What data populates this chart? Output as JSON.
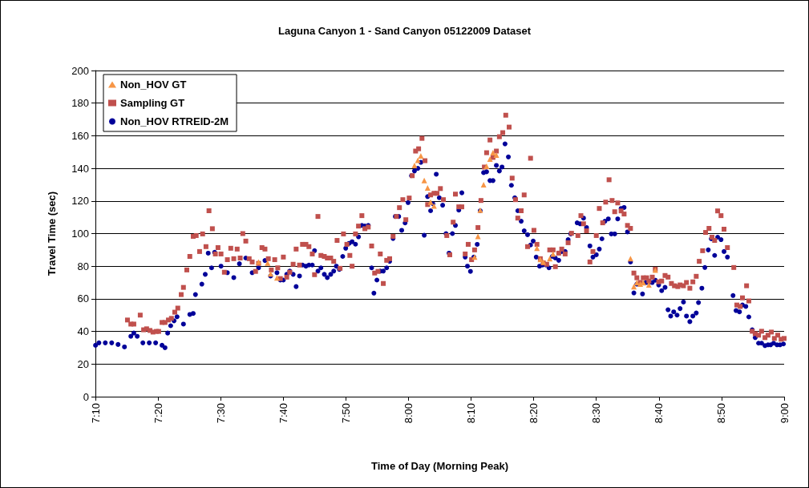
{
  "chart_data": {
    "type": "scatter",
    "title": "Laguna Canyon 1 - Sand Canyon 05122009 Dataset",
    "xlabel": "Time of Day (Morning Peak)",
    "ylabel": "Travel Time (sec)",
    "xlim": [
      7.1667,
      9
    ],
    "xticks": [
      {
        "value": 7.1667,
        "label": "7:10"
      },
      {
        "value": 7.3333,
        "label": "7:20"
      },
      {
        "value": 7.5,
        "label": "7:30"
      },
      {
        "value": 7.6667,
        "label": "7:40"
      },
      {
        "value": 7.8333,
        "label": "7:50"
      },
      {
        "value": 8,
        "label": "8:00"
      },
      {
        "value": 8.1667,
        "label": "8:10"
      },
      {
        "value": 8.3333,
        "label": "8:20"
      },
      {
        "value": 8.5,
        "label": "8:30"
      },
      {
        "value": 8.6667,
        "label": "8:40"
      },
      {
        "value": 8.8333,
        "label": "8:50"
      },
      {
        "value": 9,
        "label": "9:00"
      }
    ],
    "ylim": [
      0,
      200
    ],
    "yticks": [
      0,
      20,
      40,
      60,
      80,
      100,
      120,
      140,
      160,
      180,
      200
    ],
    "grid": "y",
    "legend": "top left",
    "series": [
      {
        "name": "Non_HOV GT",
        "color": "#f79646",
        "marker": "triangle",
        "x": [
          7.601,
          7.625,
          7.633,
          7.65,
          8.016,
          8.025,
          8.033,
          8.042,
          8.051,
          8.059,
          8.068,
          8.176,
          8.185,
          8.191,
          8.2,
          8.208,
          8.217,
          8.225,
          8.234,
          8.342,
          8.351,
          8.359,
          8.376,
          8.385,
          8.591,
          8.6,
          8.608,
          8.617,
          8.625,
          8.64,
          8.657
        ],
        "values": [
          82.6,
          82,
          75.3,
          72.9,
          141.8,
          145,
          147.7,
          132.5,
          128,
          119.3,
          116.9,
          85.6,
          98.3,
          114.4,
          130,
          141.3,
          145.7,
          149.6,
          148.2,
          91,
          84.1,
          82.6,
          84.6,
          87.5,
          84.6,
          67.5,
          69.9,
          69,
          69.9,
          68.5,
          77.7
        ]
      },
      {
        "name": "Sampling GT",
        "color": "#c0504d",
        "marker": "square",
        "x": [
          7.252,
          7.261,
          7.269,
          7.286,
          7.295,
          7.303,
          7.312,
          7.32,
          7.329,
          7.335,
          7.344,
          7.352,
          7.361,
          7.369,
          7.378,
          7.386,
          7.395,
          7.401,
          7.41,
          7.418,
          7.427,
          7.435,
          7.444,
          7.452,
          7.461,
          7.469,
          7.478,
          7.486,
          7.493,
          7.501,
          7.51,
          7.518,
          7.527,
          7.535,
          7.544,
          7.552,
          7.559,
          7.567,
          7.576,
          7.584,
          7.593,
          7.601,
          7.61,
          7.618,
          7.627,
          7.635,
          7.644,
          7.652,
          7.659,
          7.667,
          7.676,
          7.684,
          7.693,
          7.701,
          7.71,
          7.718,
          7.727,
          7.735,
          7.744,
          7.75,
          7.759,
          7.767,
          7.776,
          7.784,
          7.793,
          7.801,
          7.81,
          7.818,
          7.827,
          7.836,
          7.844,
          7.85,
          7.859,
          7.867,
          7.876,
          7.884,
          7.893,
          7.902,
          7.91,
          7.919,
          7.925,
          7.933,
          7.942,
          7.95,
          7.959,
          7.968,
          7.976,
          7.985,
          7.993,
          8.002,
          8.01,
          8.019,
          8.027,
          8.036,
          8.044,
          8.051,
          8.059,
          8.068,
          8.076,
          8.085,
          8.093,
          8.102,
          8.11,
          8.119,
          8.125,
          8.134,
          8.142,
          8.151,
          8.159,
          8.168,
          8.176,
          8.185,
          8.193,
          8.202,
          8.208,
          8.217,
          8.225,
          8.234,
          8.242,
          8.251,
          8.259,
          8.268,
          8.276,
          8.285,
          8.291,
          8.3,
          8.308,
          8.317,
          8.325,
          8.334,
          8.342,
          8.351,
          8.359,
          8.368,
          8.376,
          8.385,
          8.391,
          8.4,
          8.408,
          8.417,
          8.425,
          8.434,
          8.451,
          8.459,
          8.466,
          8.474,
          8.483,
          8.491,
          8.5,
          8.508,
          8.517,
          8.525,
          8.534,
          8.542,
          8.549,
          8.557,
          8.566,
          8.574,
          8.583,
          8.591,
          8.6,
          8.608,
          8.617,
          8.625,
          8.634,
          8.64,
          8.649,
          8.657,
          8.666,
          8.674,
          8.683,
          8.691,
          8.7,
          8.708,
          8.717,
          8.723,
          8.732,
          8.74,
          8.749,
          8.757,
          8.766,
          8.774,
          8.783,
          8.791,
          8.8,
          8.808,
          8.815,
          8.823,
          8.832,
          8.84,
          8.849,
          8.866,
          8.874,
          8.883,
          8.889,
          8.9,
          8.906,
          8.915,
          8.923,
          8.932,
          8.94,
          8.949,
          8.957,
          8.966,
          8.974,
          8.983,
          8.992,
          9.0
        ],
        "values": [
          47,
          44.5,
          44.5,
          50,
          41,
          41.6,
          40.6,
          39.6,
          40,
          40,
          45.5,
          45.5,
          47,
          48,
          51.8,
          54.3,
          62.6,
          67,
          77.7,
          86,
          98.3,
          98.8,
          89,
          99.8,
          92,
          114,
          103,
          87.5,
          91.4,
          87.5,
          76.3,
          84,
          91,
          84.6,
          90.5,
          85,
          100,
          95.4,
          84.6,
          82.6,
          76.8,
          81.7,
          91.4,
          90.5,
          84.6,
          77.7,
          84,
          79,
          72.4,
          85.6,
          73.3,
          76.3,
          81.2,
          90.5,
          80.7,
          93.4,
          93.4,
          92,
          87.5,
          74.8,
          110.5,
          86.6,
          86,
          85,
          85,
          83,
          95.8,
          78.7,
          99.8,
          93.4,
          86.6,
          80,
          99.8,
          104.6,
          111,
          103,
          104,
          92.4,
          75.8,
          76.8,
          87.5,
          69.4,
          83.6,
          84.6,
          98.3,
          110.5,
          115.9,
          120.8,
          108.5,
          121.8,
          135.5,
          150.6,
          152,
          158.4,
          144.7,
          117.8,
          123.7,
          124.7,
          124.7,
          127.6,
          120.8,
          98.8,
          87,
          107,
          124.2,
          116.4,
          116.4,
          87.5,
          93.4,
          84,
          90,
          103.7,
          120.3,
          140.8,
          149.6,
          157.4,
          146.7,
          150.6,
          159.4,
          161.9,
          172.6,
          165.3,
          134,
          120.8,
          109.5,
          114,
          123.7,
          92,
          146.2,
          102,
          93.4,
          84.6,
          82,
          81.2,
          90,
          90,
          79.7,
          88,
          90.5,
          87.5,
          94.4,
          100.2,
          98.8,
          111,
          106,
          101.7,
          82.6,
          89,
          98.8,
          115.4,
          106.6,
          119.3,
          133,
          120.3,
          113.4,
          118.8,
          113.9,
          112,
          105,
          103.2,
          75.8,
          72.9,
          70,
          72.9,
          72.9,
          70.9,
          73.3,
          78.2,
          70.4,
          70.9,
          74.3,
          73.3,
          69.4,
          68,
          67.5,
          68.5,
          68,
          70,
          66.5,
          70.4,
          73.8,
          83,
          89.5,
          100.7,
          103.2,
          97.8,
          95.8,
          113.9,
          111,
          102.7,
          91.4,
          79.2,
          56.2,
          55.3,
          60.6,
          68,
          58.7,
          40.1,
          38.6,
          37.7,
          40.1,
          36.2,
          37.7,
          39.6,
          35.7,
          37.7,
          35.2,
          35.7
        ]
      },
      {
        "name": "Non_HOV RTREID-2M",
        "color": "#000099",
        "marker": "circle",
        "x": [
          7.167,
          7.176,
          7.193,
          7.21,
          7.227,
          7.244,
          7.261,
          7.269,
          7.278,
          7.293,
          7.31,
          7.327,
          7.344,
          7.352,
          7.359,
          7.367,
          7.376,
          7.384,
          7.401,
          7.418,
          7.427,
          7.433,
          7.45,
          7.459,
          7.467,
          7.476,
          7.484,
          7.501,
          7.518,
          7.535,
          7.55,
          7.567,
          7.584,
          7.601,
          7.618,
          7.633,
          7.65,
          7.659,
          7.667,
          7.676,
          7.684,
          7.693,
          7.701,
          7.71,
          7.718,
          7.727,
          7.735,
          7.744,
          7.75,
          7.759,
          7.767,
          7.776,
          7.784,
          7.793,
          7.801,
          7.808,
          7.816,
          7.825,
          7.833,
          7.842,
          7.85,
          7.859,
          7.867,
          7.876,
          7.884,
          7.893,
          7.902,
          7.908,
          7.916,
          7.925,
          7.933,
          7.942,
          7.95,
          7.959,
          7.965,
          7.974,
          7.982,
          7.991,
          7.999,
          8.008,
          8.016,
          8.025,
          8.033,
          8.042,
          8.051,
          8.059,
          8.065,
          8.074,
          8.082,
          8.091,
          8.1,
          8.108,
          8.117,
          8.125,
          8.134,
          8.142,
          8.151,
          8.157,
          8.165,
          8.174,
          8.183,
          8.191,
          8.2,
          8.208,
          8.217,
          8.225,
          8.234,
          8.242,
          8.249,
          8.257,
          8.266,
          8.274,
          8.283,
          8.291,
          8.3,
          8.308,
          8.317,
          8.325,
          8.332,
          8.34,
          8.349,
          8.357,
          8.366,
          8.374,
          8.383,
          8.391,
          8.4,
          8.408,
          8.417,
          8.425,
          8.432,
          8.449,
          8.457,
          8.466,
          8.474,
          8.483,
          8.491,
          8.5,
          8.508,
          8.515,
          8.523,
          8.532,
          8.54,
          8.549,
          8.557,
          8.566,
          8.574,
          8.583,
          8.591,
          8.6,
          8.608,
          8.617,
          8.623,
          8.632,
          8.64,
          8.649,
          8.657,
          8.666,
          8.674,
          8.683,
          8.691,
          8.698,
          8.706,
          8.715,
          8.723,
          8.732,
          8.74,
          8.749,
          8.757,
          8.766,
          8.772,
          8.781,
          8.789,
          8.798,
          8.806,
          8.815,
          8.823,
          8.832,
          8.84,
          8.849,
          8.864,
          8.872,
          8.881,
          8.889,
          8.898,
          8.906,
          8.915,
          8.923,
          8.932,
          8.94,
          8.949,
          8.957,
          8.964,
          8.972,
          8.981,
          8.989,
          8.998
        ],
        "values": [
          31.5,
          33,
          33,
          33,
          32,
          30.5,
          37,
          39,
          37,
          33,
          33,
          33,
          31.5,
          30,
          39,
          43.5,
          46.5,
          49,
          44.5,
          50.4,
          51,
          62.6,
          69,
          75,
          88,
          79,
          88.5,
          80,
          76,
          73,
          81.5,
          85,
          76,
          79,
          83.5,
          74,
          76,
          71.5,
          71.5,
          75,
          77,
          75,
          67.5,
          74,
          80.7,
          80,
          80.7,
          80.7,
          89.5,
          77,
          79,
          75,
          73,
          75,
          77,
          80,
          78,
          86,
          91,
          94,
          95,
          93.5,
          98,
          105,
          104.6,
          105,
          79,
          63.5,
          71.5,
          77,
          77,
          79,
          83,
          97,
          110.5,
          110.5,
          102,
          106.5,
          119,
          135.5,
          138.4,
          140,
          143.7,
          99,
          122.7,
          114,
          118.3,
          136.4,
          122,
          117.4,
          100,
          88,
          100,
          105,
          114.4,
          125,
          85.6,
          80,
          76.8,
          85.6,
          93.4,
          114,
          137.4,
          137.9,
          132.5,
          132.5,
          141.8,
          138.4,
          140.8,
          155,
          147,
          129.6,
          122,
          114,
          107.6,
          101.7,
          99.3,
          93,
          95.4,
          85.6,
          80,
          80.7,
          80.7,
          79,
          86,
          85,
          83.6,
          89,
          89,
          96.3,
          99.8,
          106.6,
          106,
          109.5,
          103.7,
          92.4,
          85.6,
          87,
          90.5,
          96.8,
          107.6,
          109,
          99.8,
          99.8,
          109,
          115.4,
          116,
          101,
          82.6,
          63.6,
          69,
          null,
          63,
          70,
          70,
          70,
          71.4,
          68.5,
          65,
          67,
          53.3,
          49.4,
          52,
          50,
          54,
          58,
          49.4,
          46,
          49.4,
          51.3,
          57.7,
          66.5,
          79.2,
          90,
          96.8,
          86.6,
          97.8,
          96.3,
          89,
          85.6,
          62,
          52.8,
          52,
          56.2,
          55.3,
          48.9,
          41,
          36.2,
          32.8,
          32.8,
          31.3,
          31.8,
          31.8,
          32.8,
          31.8,
          31.8,
          32.3
        ]
      }
    ]
  }
}
